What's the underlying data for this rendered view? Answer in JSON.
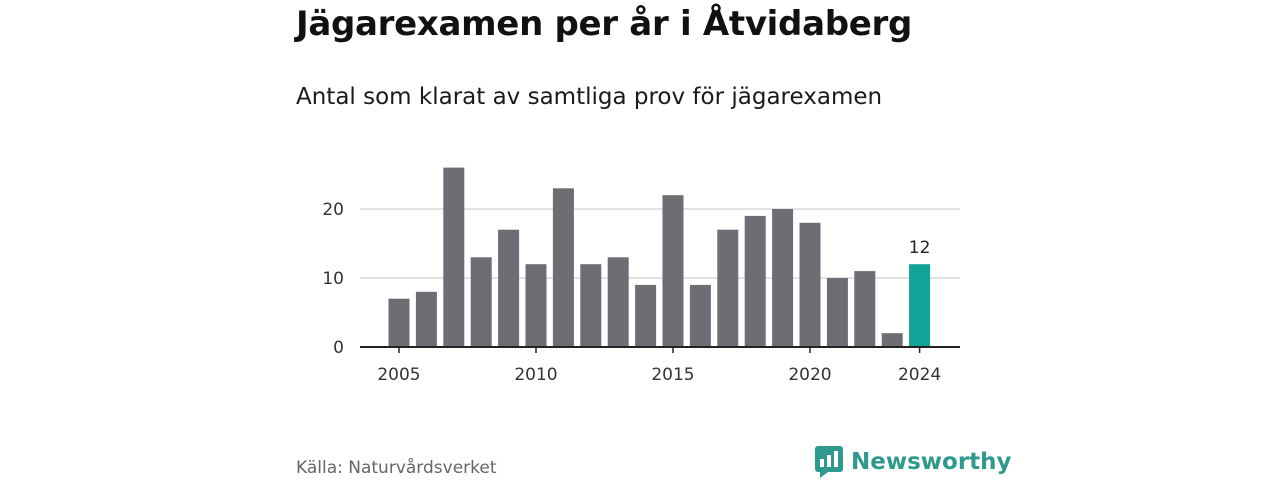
{
  "header": {
    "title": "Jägarexamen per år i Åtvidaberg",
    "subtitle": "Antal som klarat av samtliga prov för jägarexamen"
  },
  "footer": {
    "source": "Källa: Naturvårdsverket",
    "brand": "Newsworthy"
  },
  "colors": {
    "bar": "#6e6d73",
    "highlight": "#0fa497",
    "grid": "#d9d9d9",
    "axis": "#222222",
    "brand": "#2e9a8d"
  },
  "icons": {
    "brand_logo": "newsworthy-logo-icon"
  },
  "chart_data": {
    "type": "bar",
    "title": "Jägarexamen per år i Åtvidaberg",
    "subtitle": "Antal som klarat av samtliga prov för jägarexamen",
    "xlabel": "",
    "ylabel": "",
    "x": [
      2005,
      2006,
      2007,
      2008,
      2009,
      2010,
      2011,
      2012,
      2013,
      2014,
      2015,
      2016,
      2017,
      2018,
      2019,
      2020,
      2021,
      2022,
      2023,
      2024
    ],
    "values": [
      7,
      8,
      26,
      13,
      17,
      12,
      23,
      12,
      13,
      9,
      22,
      9,
      17,
      19,
      20,
      18,
      10,
      11,
      2,
      12
    ],
    "highlight_index": 19,
    "highlight_label": "12",
    "xticks": [
      "2005",
      "2010",
      "2015",
      "2020",
      "2024"
    ],
    "yticks": [
      "0",
      "10",
      "20"
    ],
    "ylim": [
      0,
      26
    ],
    "grid": true
  }
}
